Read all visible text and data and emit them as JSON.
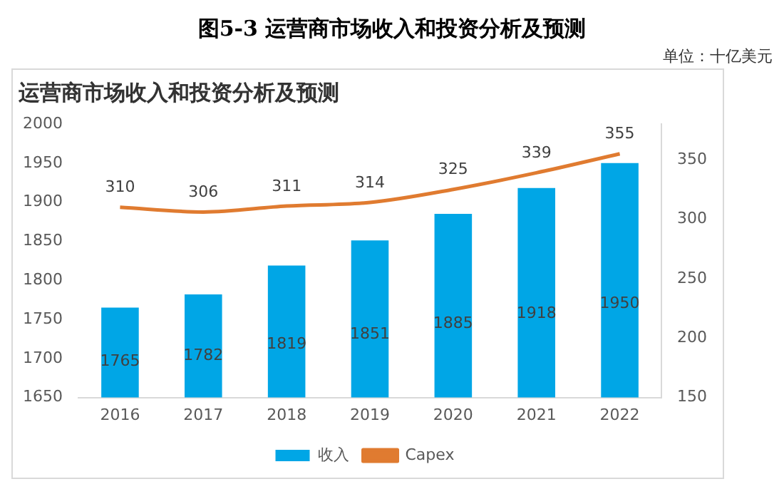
{
  "chart_data": {
    "type": "bar",
    "title": "图5-3  运营商市场收入和投资分析及预测",
    "subtitle": "运营商市场收入和投资分析及预测",
    "annotations": [
      "单位：十亿美元"
    ],
    "categories": [
      "2016",
      "2017",
      "2018",
      "2019",
      "2020",
      "2021",
      "2022"
    ],
    "series": [
      {
        "name": "收入",
        "color": "#00a6e6",
        "values": [
          1765,
          1782,
          1819,
          1851,
          1885,
          1918,
          1950
        ]
      },
      {
        "name": "Capex",
        "type": "line",
        "axis": "y2",
        "color": "#e07b30",
        "values": [
          310,
          306,
          311,
          314,
          325,
          339,
          355
        ]
      }
    ],
    "ylim": [
      1650,
      2000
    ],
    "yticks": [
      1650,
      1700,
      1750,
      1800,
      1850,
      1900,
      1950,
      2000
    ],
    "y2lim": [
      150,
      380
    ],
    "y2ticks": [
      150,
      200,
      250,
      300,
      350
    ],
    "data_labels": true,
    "legend": "bottom",
    "grid": false,
    "marker": "none",
    "line_style": "solid"
  }
}
